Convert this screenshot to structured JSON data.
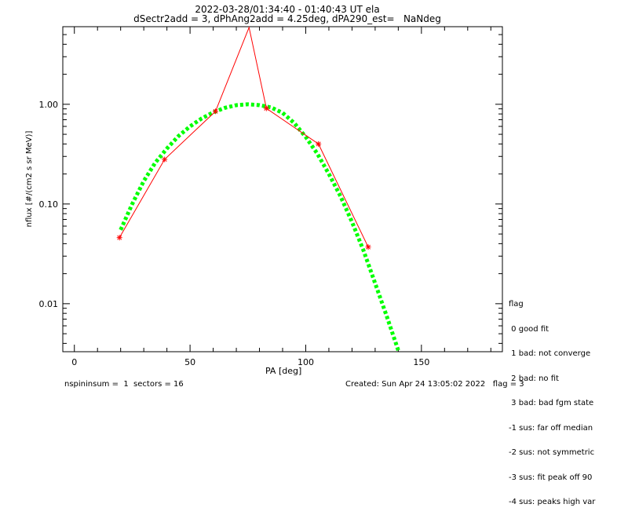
{
  "header": {
    "title_line1": "2022-03-28/01:34:40 - 01:40:43 UT ela",
    "title_line2": "dSectr2add = 3, dPhAng2add = 4.25deg, dPA290_est=   NaNdeg"
  },
  "footer": {
    "left": "nspininsum =  1  sectors = 16",
    "right": "Created: Sun Apr 24 13:05:02 2022   flag = 3"
  },
  "legend": {
    "title": "flag",
    "items": [
      " 0 good fit",
      " 1 bad: not converge",
      " 2 bad: no fit",
      " 3 bad: bad fgm state",
      "-1 sus: far off median",
      "-2 sus: not symmetric",
      "-3 sus: fit peak off 90",
      "-4 sus: peaks high var"
    ]
  },
  "colors": {
    "data": "#ff0000",
    "fit": "#00ff00",
    "axes": "#000000"
  },
  "chart_data": {
    "type": "line",
    "xlabel": "PA [deg]",
    "ylabel": "nflux [#/(cm2 s sr MeV)]",
    "xlim": [
      -5,
      185
    ],
    "ylim": [
      0.0033,
      6.0
    ],
    "yscale": "log",
    "xticks": [
      0,
      50,
      100,
      150
    ],
    "yticks": [
      0.01,
      0.1,
      1.0
    ],
    "ytick_labels": [
      "0.01",
      "0.10",
      "1.00"
    ],
    "series": [
      {
        "style": "red line with asterisk markers",
        "x": [
          19.5,
          39.0,
          61.0,
          75.5,
          83.0,
          105.5,
          127.0
        ],
        "y": [
          0.046,
          0.28,
          0.85,
          5.9,
          0.91,
          0.4,
          0.037
        ],
        "markers": [
          true,
          true,
          true,
          false,
          true,
          true,
          true
        ]
      },
      {
        "style": "green dotted fit",
        "x": [
          20,
          25,
          30,
          35,
          40,
          45,
          50,
          55,
          60,
          65,
          70,
          75,
          80,
          85,
          90,
          95,
          100,
          105,
          110,
          115,
          120,
          125,
          130,
          135,
          140
        ],
        "y": [
          0.055,
          0.1,
          0.17,
          0.26,
          0.36,
          0.48,
          0.6,
          0.72,
          0.83,
          0.92,
          0.98,
          1.0,
          0.98,
          0.93,
          0.82,
          0.65,
          0.47,
          0.32,
          0.2,
          0.12,
          0.066,
          0.034,
          0.016,
          0.0075,
          0.0034
        ]
      }
    ]
  }
}
